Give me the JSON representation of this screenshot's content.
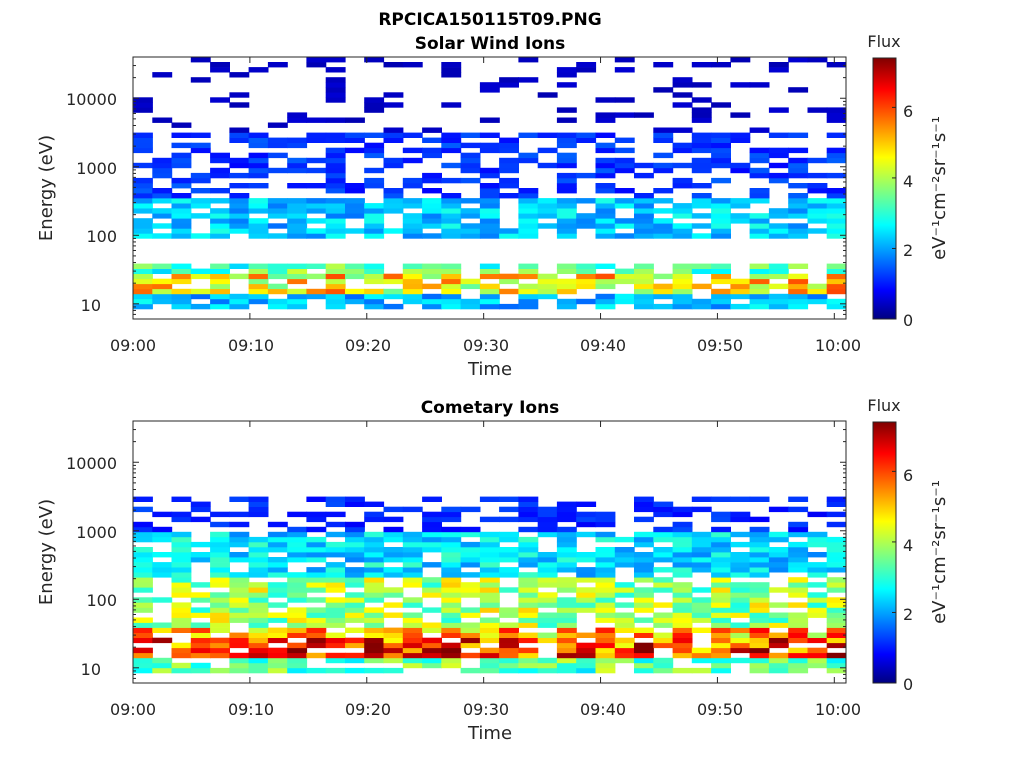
{
  "title": "RPCICA150115T09.PNG",
  "chart_data": [
    {
      "type": "heatmap",
      "title": "Solar Wind Ions",
      "xlabel": "Time",
      "ylabel": "Energy (eV)",
      "x_ticks": [
        "09:00",
        "09:10",
        "09:20",
        "09:30",
        "09:40",
        "09:50",
        "10:00"
      ],
      "y_ticks": [
        "10",
        "100",
        "1000",
        "10000"
      ],
      "y_scale": "log",
      "ylim": [
        6,
        40000
      ],
      "xlim_minutes": [
        0,
        61
      ],
      "colorbar": {
        "title": "Flux",
        "label": "eV⁻¹cm⁻²sr⁻¹s⁻¹",
        "ticks": [
          "0",
          "2",
          "4",
          "6"
        ],
        "range": [
          0,
          7.4
        ],
        "colormap": "jet"
      },
      "grid": false,
      "bands": [
        {
          "emin": 15,
          "emax": 28,
          "level": 4.8
        },
        {
          "emin": 28,
          "emax": 38,
          "level": 3.4
        },
        {
          "emin": 9,
          "emax": 13,
          "level": 2.3
        },
        {
          "emin": 90,
          "emax": 330,
          "level": 2.4
        },
        {
          "emin": 350,
          "emax": 3000,
          "level": 1.3
        },
        {
          "emin": 3000,
          "emax": 40000,
          "level": 0.5
        }
      ]
    },
    {
      "type": "heatmap",
      "title": "Cometary Ions",
      "xlabel": "Time",
      "ylabel": "Energy (eV)",
      "x_ticks": [
        "09:00",
        "09:10",
        "09:20",
        "09:30",
        "09:40",
        "09:50",
        "10:00"
      ],
      "y_ticks": [
        "10",
        "100",
        "1000",
        "10000"
      ],
      "y_scale": "log",
      "ylim": [
        6,
        40000
      ],
      "xlim_minutes": [
        0,
        61
      ],
      "colorbar": {
        "title": "Flux",
        "label": "eV⁻¹cm⁻²sr⁻¹s⁻¹",
        "ticks": [
          "0",
          "2",
          "4",
          "6"
        ],
        "range": [
          0,
          7.4
        ],
        "colormap": "jet"
      },
      "grid": false,
      "bands": [
        {
          "emin": 15,
          "emax": 28,
          "level": 6.2
        },
        {
          "emin": 28,
          "emax": 40,
          "level": 5.3
        },
        {
          "emin": 9,
          "emax": 14,
          "level": 3.5
        },
        {
          "emin": 40,
          "emax": 200,
          "level": 4.0
        },
        {
          "emin": 200,
          "emax": 1000,
          "level": 2.6
        },
        {
          "emin": 1000,
          "emax": 3000,
          "level": 1.2
        }
      ]
    }
  ]
}
